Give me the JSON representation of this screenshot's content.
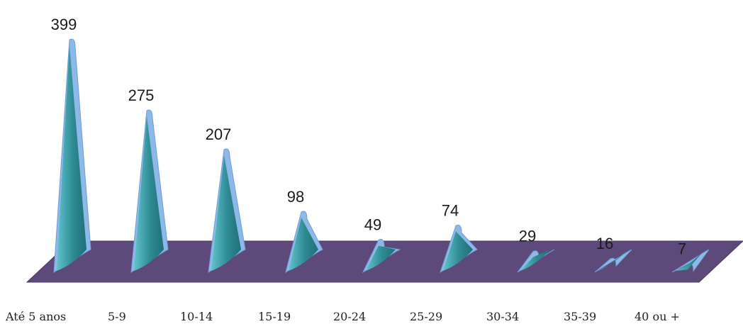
{
  "chart_data": {
    "type": "bar",
    "style": "3d-cone",
    "title": "",
    "xlabel": "",
    "ylabel": "",
    "categories": [
      "Até 5 anos",
      "5-9",
      "10-14",
      "15-19",
      "20-24",
      "25-29",
      "30-34",
      "35-39",
      "40 ou +"
    ],
    "values": [
      399,
      275,
      207,
      98,
      49,
      74,
      29,
      16,
      7
    ],
    "data_labels": [
      "399",
      "275",
      "207",
      "98",
      "49",
      "74",
      "29",
      "16",
      "7"
    ],
    "ylim": [
      0,
      399
    ],
    "grid": false,
    "legend": "none",
    "colors": {
      "floor": "#5e4a7a",
      "floor_edge": "#4a3a62",
      "cone_front": "#2e8a93",
      "cone_highlight": "#5fc4cc",
      "cone_rim": "#8db8e8",
      "cone_rim_edge": "#6f9fd8"
    }
  }
}
